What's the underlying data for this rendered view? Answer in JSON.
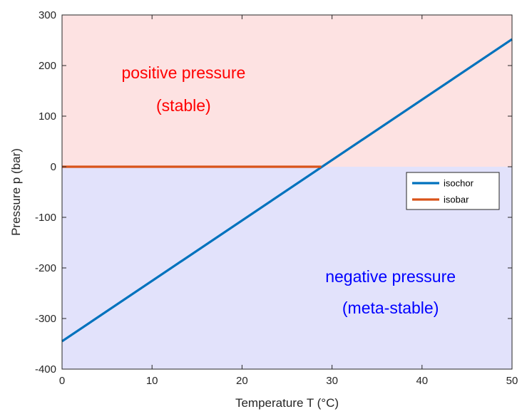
{
  "chart_data": {
    "type": "line",
    "xlabel": "Temperature T (°C)",
    "ylabel": "Pressure p (bar)",
    "xlim": [
      0,
      50
    ],
    "ylim": [
      -400,
      300
    ],
    "xticks": [
      0,
      10,
      20,
      30,
      40,
      50
    ],
    "yticks": [
      -400,
      -300,
      -200,
      -100,
      0,
      100,
      200,
      300
    ],
    "xtick_labels": [
      "0",
      "10",
      "20",
      "30",
      "40",
      "50"
    ],
    "ytick_labels": [
      "-400",
      "-300",
      "-200",
      "-100",
      "0",
      "100",
      "200",
      "300"
    ],
    "grid": false,
    "legend_position": "right",
    "regions": [
      {
        "y_from": 0,
        "y_to": 300,
        "color": "#fde2e2"
      },
      {
        "y_from": -400,
        "y_to": 0,
        "color": "#e2e2fb"
      }
    ],
    "series": [
      {
        "name": "isochor",
        "color": "#0072bd",
        "x": [
          0,
          50
        ],
        "y": [
          -345,
          252
        ]
      },
      {
        "name": "isobar",
        "color": "#d95319",
        "x": [
          0,
          28.8
        ],
        "y": [
          0,
          0
        ]
      }
    ],
    "annotations": [
      {
        "lines": [
          "positive pressure",
          "(stable)"
        ],
        "color": "#ff0000",
        "x": 13.5,
        "y": [
          175,
          110
        ]
      },
      {
        "lines": [
          "negative pressure",
          "(meta-stable)"
        ],
        "color": "#0000ff",
        "x": 36.5,
        "y": [
          -228,
          -290
        ]
      }
    ]
  }
}
